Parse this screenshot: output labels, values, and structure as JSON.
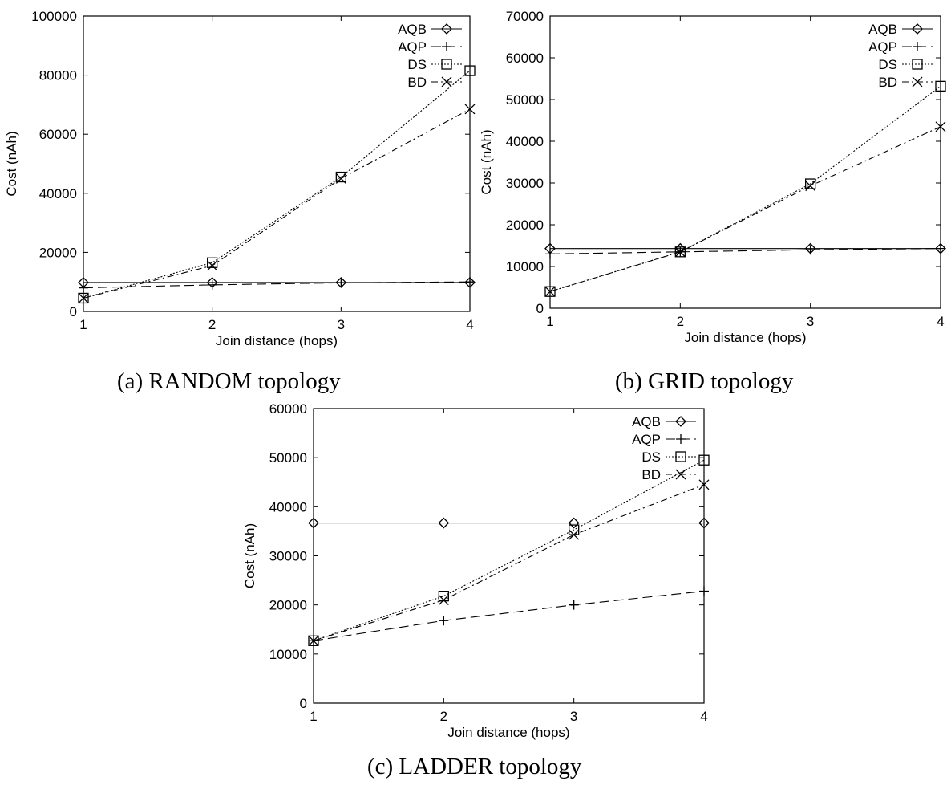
{
  "chart_data": [
    {
      "type": "line",
      "caption": "(a) RANDOM topology",
      "xlabel": "Join distance (hops)",
      "ylabel": "Cost (nAh)",
      "x": [
        1,
        2,
        3,
        4
      ],
      "xlim": [
        1,
        4
      ],
      "ylim": [
        0,
        100000
      ],
      "xticks": [
        "1",
        "2",
        "3",
        "4"
      ],
      "yticks": [
        "0",
        "20000",
        "40000",
        "60000",
        "80000",
        "100000"
      ],
      "legend": "top-right",
      "grid": false,
      "series": [
        {
          "name": "AQB",
          "marker": "diamond",
          "dash": "solid",
          "values": [
            9800,
            9800,
            9800,
            9800
          ]
        },
        {
          "name": "AQP",
          "marker": "plus",
          "dash": "long-dash",
          "values": [
            8000,
            9000,
            9700,
            10000
          ]
        },
        {
          "name": "DS",
          "marker": "square",
          "dash": "dotted",
          "values": [
            4500,
            16500,
            45500,
            81500
          ]
        },
        {
          "name": "BD",
          "marker": "cross",
          "dash": "dash-dot",
          "values": [
            4500,
            15500,
            45000,
            68500
          ]
        }
      ]
    },
    {
      "type": "line",
      "caption": "(b) GRID topology",
      "xlabel": "Join distance (hops)",
      "ylabel": "Cost (nAh)",
      "x": [
        1,
        2,
        3,
        4
      ],
      "xlim": [
        1,
        4
      ],
      "ylim": [
        0,
        70000
      ],
      "xticks": [
        "1",
        "2",
        "3",
        "4"
      ],
      "yticks": [
        "0",
        "10000",
        "20000",
        "30000",
        "40000",
        "50000",
        "60000",
        "70000"
      ],
      "legend": "top-right",
      "grid": false,
      "series": [
        {
          "name": "AQB",
          "marker": "diamond",
          "dash": "solid",
          "values": [
            14300,
            14300,
            14300,
            14300
          ]
        },
        {
          "name": "AQP",
          "marker": "plus",
          "dash": "long-dash",
          "values": [
            13000,
            13500,
            14000,
            14300
          ]
        },
        {
          "name": "DS",
          "marker": "square",
          "dash": "dotted",
          "values": [
            4000,
            13500,
            29800,
            53200
          ]
        },
        {
          "name": "BD",
          "marker": "cross",
          "dash": "dash-dot",
          "values": [
            4000,
            13500,
            29300,
            43500
          ]
        }
      ]
    },
    {
      "type": "line",
      "caption": "(c) LADDER topology",
      "xlabel": "Join distance (hops)",
      "ylabel": "Cost (nAh)",
      "x": [
        1,
        2,
        3,
        4
      ],
      "xlim": [
        1,
        4
      ],
      "ylim": [
        0,
        60000
      ],
      "xticks": [
        "1",
        "2",
        "3",
        "4"
      ],
      "yticks": [
        "0",
        "10000",
        "20000",
        "30000",
        "40000",
        "50000",
        "60000"
      ],
      "legend": "top-right",
      "grid": false,
      "series": [
        {
          "name": "AQB",
          "marker": "diamond",
          "dash": "solid",
          "values": [
            36700,
            36700,
            36700,
            36700
          ]
        },
        {
          "name": "AQP",
          "marker": "plus",
          "dash": "long-dash",
          "values": [
            12700,
            16800,
            20000,
            22800
          ]
        },
        {
          "name": "DS",
          "marker": "square",
          "dash": "dotted",
          "values": [
            12700,
            21800,
            35300,
            49500
          ]
        },
        {
          "name": "BD",
          "marker": "cross",
          "dash": "dash-dot",
          "values": [
            12700,
            21000,
            34300,
            44500
          ]
        }
      ]
    }
  ]
}
